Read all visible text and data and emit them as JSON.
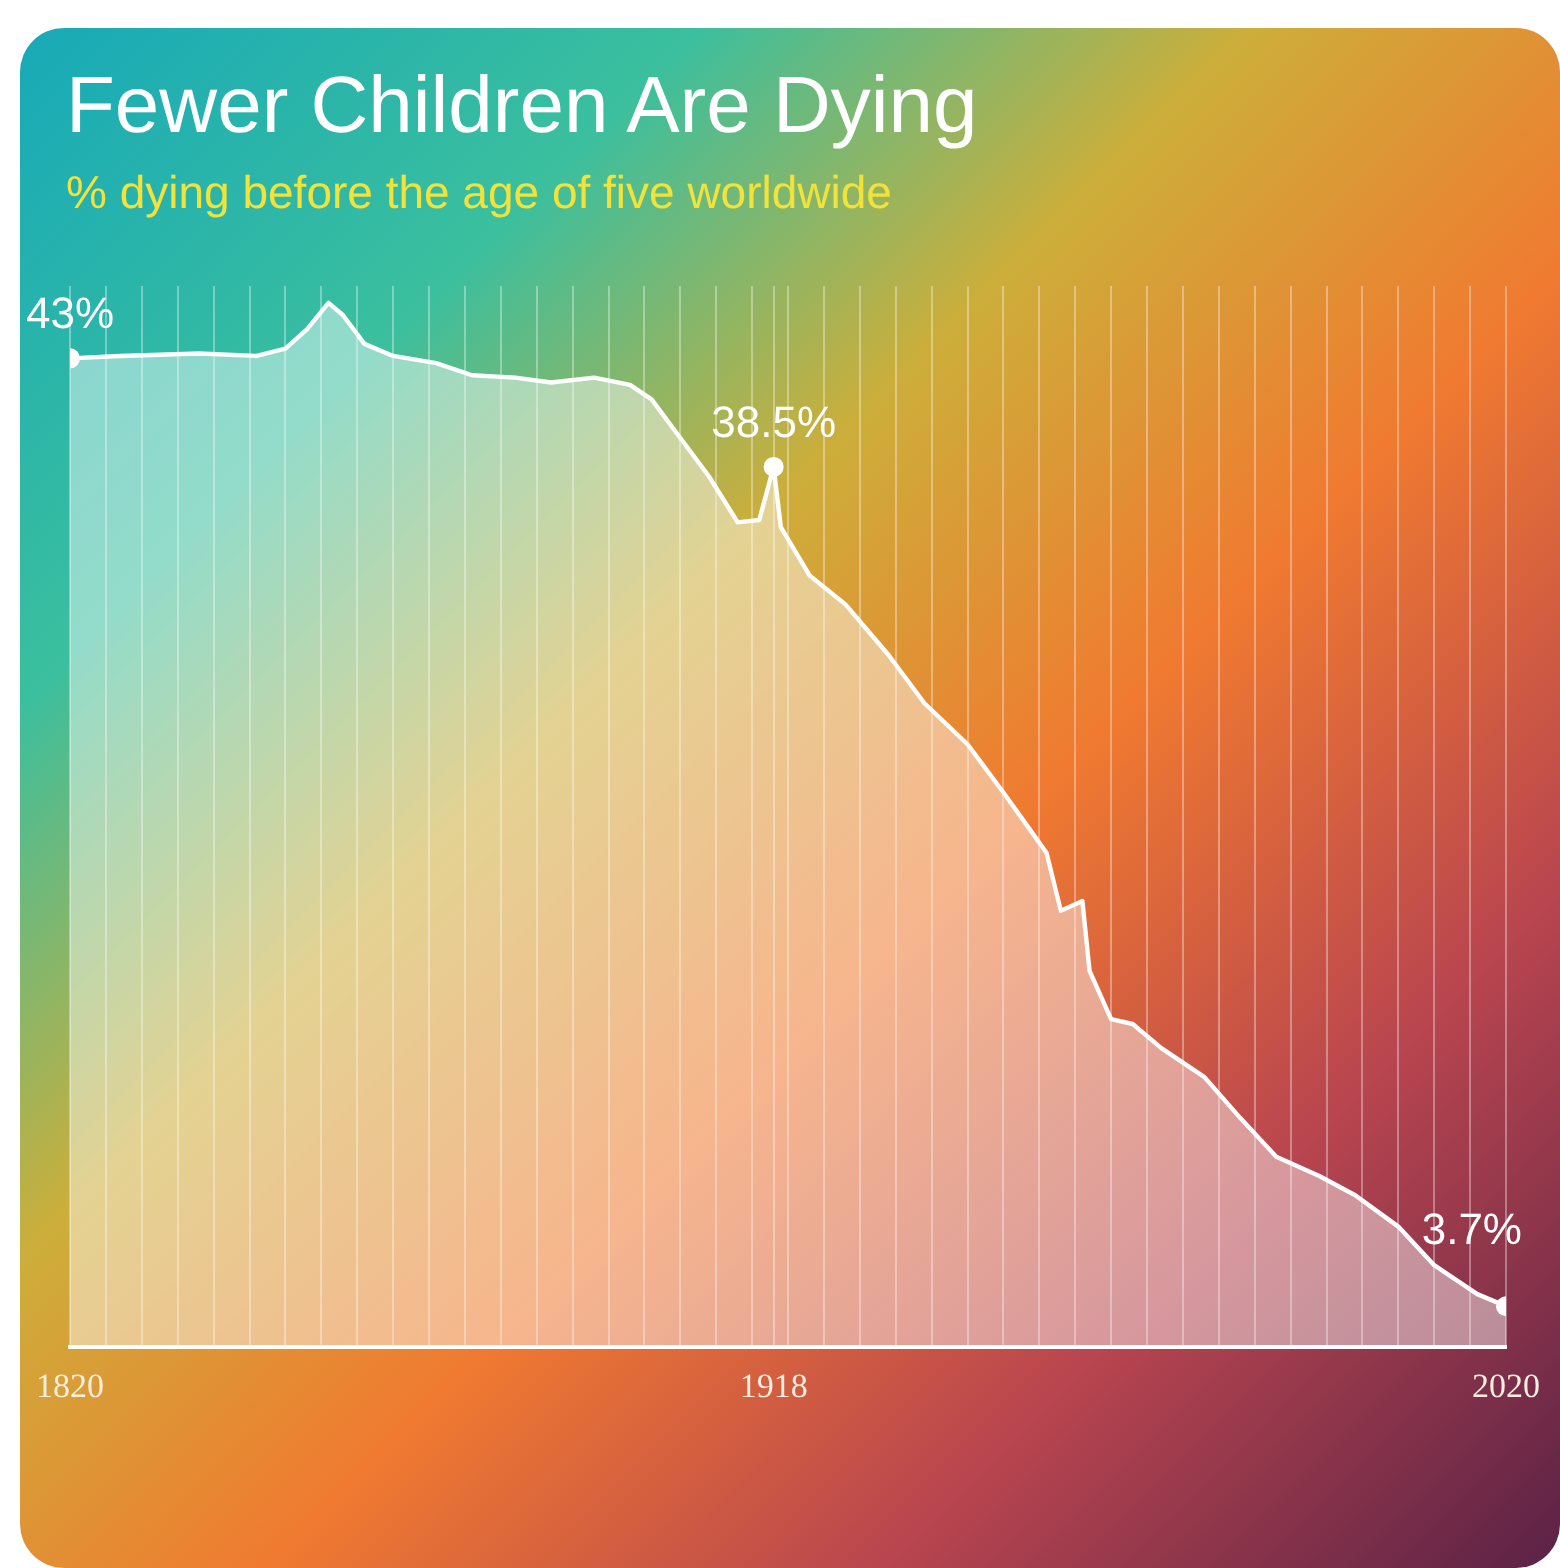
{
  "chart_data": {
    "type": "area",
    "title": "Fewer Children Are Dying",
    "subtitle": "% dying before the age of five worldwide",
    "x": [
      1820,
      1827,
      1838,
      1846,
      1850,
      1853,
      1856,
      1858,
      1861,
      1865,
      1871,
      1876,
      1882,
      1887,
      1893,
      1898,
      1901,
      1905,
      1909,
      1913,
      1916,
      1918,
      1919,
      1923,
      1928,
      1934,
      1939,
      1945,
      1950,
      1956,
      1958,
      1961,
      1962,
      1965,
      1968,
      1972,
      1978,
      1983,
      1988,
      1994,
      1999,
      2005,
      2010,
      2016,
      2020
    ],
    "series": [
      {
        "color": "#ffffff",
        "values": [
          43,
          43.1,
          43.2,
          43.1,
          43.4,
          44.2,
          45.3,
          44.8,
          43.6,
          43.1,
          42.8,
          42.3,
          42.2,
          42,
          42.2,
          41.9,
          41.3,
          39.7,
          38.1,
          36.2,
          36.3,
          38.5,
          36,
          34,
          32.8,
          30.7,
          28.7,
          27,
          25,
          22.5,
          20.1,
          20.5,
          17.6,
          15.6,
          15.4,
          14.4,
          13.2,
          11.5,
          9.9,
          9.1,
          8.3,
          7,
          5.4,
          4.2,
          3.7
        ],
        "value_labels": [
          "43%",
          null,
          null,
          null,
          null,
          null,
          null,
          null,
          null,
          null,
          null,
          null,
          null,
          null,
          null,
          null,
          null,
          null,
          null,
          null,
          null,
          "38.5%",
          null,
          null,
          null,
          null,
          null,
          null,
          null,
          null,
          null,
          null,
          null,
          null,
          null,
          null,
          null,
          null,
          null,
          null,
          null,
          null,
          null,
          null,
          "3.7%"
        ]
      }
    ],
    "xlim": [
      1820,
      2020
    ],
    "xticks": [
      {
        "value": 1820,
        "label": "1820"
      },
      {
        "value": 1825,
        "label": null
      },
      {
        "value": 1830,
        "label": null
      },
      {
        "value": 1835,
        "label": null
      },
      {
        "value": 1840,
        "label": null
      },
      {
        "value": 1845,
        "label": null
      },
      {
        "value": 1850,
        "label": null
      },
      {
        "value": 1855,
        "label": null
      },
      {
        "value": 1860,
        "label": null
      },
      {
        "value": 1865,
        "label": null
      },
      {
        "value": 1870,
        "label": null
      },
      {
        "value": 1875,
        "label": null
      },
      {
        "value": 1880,
        "label": null
      },
      {
        "value": 1885,
        "label": null
      },
      {
        "value": 1890,
        "label": null
      },
      {
        "value": 1895,
        "label": null
      },
      {
        "value": 1900,
        "label": null
      },
      {
        "value": 1905,
        "label": null
      },
      {
        "value": 1910,
        "label": null
      },
      {
        "value": 1915,
        "label": null
      },
      {
        "value": 1918,
        "label": "1918"
      },
      {
        "value": 1920,
        "label": null
      },
      {
        "value": 1925,
        "label": null
      },
      {
        "value": 1930,
        "label": null
      },
      {
        "value": 1935,
        "label": null
      },
      {
        "value": 1940,
        "label": null
      },
      {
        "value": 1945,
        "label": null
      },
      {
        "value": 1950,
        "label": null
      },
      {
        "value": 1955,
        "label": null
      },
      {
        "value": 1960,
        "label": null
      },
      {
        "value": 1965,
        "label": null
      },
      {
        "value": 1970,
        "label": null
      },
      {
        "value": 1975,
        "label": null
      },
      {
        "value": 1980,
        "label": null
      },
      {
        "value": 1985,
        "label": null
      },
      {
        "value": 1990,
        "label": null
      },
      {
        "value": 1995,
        "label": null
      },
      {
        "value": 2000,
        "label": null
      },
      {
        "value": 2005,
        "label": null
      },
      {
        "value": 2010,
        "label": null
      },
      {
        "value": 2015,
        "label": null
      },
      {
        "value": 2020,
        "label": "2020"
      }
    ],
    "ylim": [
      2,
      46
    ],
    "tick_labels": "x",
    "grid": "x",
    "legend": false
  }
}
